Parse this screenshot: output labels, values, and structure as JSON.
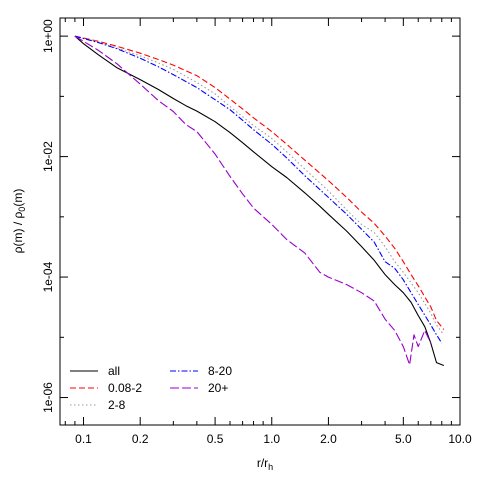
{
  "chart_data": {
    "type": "line",
    "title": "",
    "xlabel": {
      "main": "r/r",
      "sub": "h"
    },
    "ylabel": {
      "pre": "ρ(m) / ρ",
      "sub": "0",
      "post": "(m)"
    },
    "x_scale": "log",
    "y_scale": "log",
    "xlim": [
      0.075,
      10.0
    ],
    "ylim": [
      3.5e-07,
      2.0
    ],
    "x_ticks": [
      0.1,
      0.2,
      0.5,
      1.0,
      2.0,
      5.0,
      10.0
    ],
    "x_tick_labels": [
      "0.1",
      "0.2",
      "0.5",
      "1.0",
      "2.0",
      "5.0",
      "10.0"
    ],
    "y_ticks": [
      1,
      0.01,
      0.0001,
      1e-06
    ],
    "y_tick_labels": [
      "1e+00",
      "1e-02",
      "1e-04",
      "1e-06"
    ],
    "grid": false,
    "legend": {
      "placement": "bottom-left",
      "columns": 2
    },
    "series": [
      {
        "name": "all",
        "color": "#000000",
        "dash": "solid",
        "points": [
          [
            0.09,
            1.0
          ],
          [
            0.1,
            0.75
          ],
          [
            0.12,
            0.49
          ],
          [
            0.15,
            0.3
          ],
          [
            0.2,
            0.19
          ],
          [
            0.25,
            0.13
          ],
          [
            0.3,
            0.092
          ],
          [
            0.35,
            0.07
          ],
          [
            0.4,
            0.057
          ],
          [
            0.5,
            0.038
          ],
          [
            0.6,
            0.025
          ],
          [
            0.7,
            0.017
          ],
          [
            0.8,
            0.012
          ],
          [
            1.0,
            0.0068
          ],
          [
            1.2,
            0.0045
          ],
          [
            1.5,
            0.0025
          ],
          [
            1.8,
            0.0015
          ],
          [
            2.0,
            0.0011
          ],
          [
            2.5,
            0.00058
          ],
          [
            3.0,
            0.00032
          ],
          [
            3.5,
            0.00019
          ],
          [
            4.0,
            0.00011
          ],
          [
            4.5,
            7.5e-05
          ],
          [
            5.0,
            5.5e-05
          ],
          [
            5.5,
            3.8e-05
          ],
          [
            6.0,
            2.3e-05
          ],
          [
            6.5,
            1.5e-05
          ],
          [
            7.0,
            8e-06
          ],
          [
            7.5,
            3.8e-06
          ],
          [
            8.2,
            3.4e-06
          ]
        ]
      },
      {
        "name": "0.08-2",
        "color": "#ff0000",
        "dash": "dashed",
        "points": [
          [
            0.09,
            1.0
          ],
          [
            0.12,
            0.82
          ],
          [
            0.15,
            0.68
          ],
          [
            0.2,
            0.52
          ],
          [
            0.25,
            0.41
          ],
          [
            0.3,
            0.33
          ],
          [
            0.4,
            0.22
          ],
          [
            0.5,
            0.14
          ],
          [
            0.6,
            0.09
          ],
          [
            0.7,
            0.062
          ],
          [
            0.8,
            0.044
          ],
          [
            1.0,
            0.026
          ],
          [
            1.2,
            0.016
          ],
          [
            1.5,
            0.0087
          ],
          [
            2.0,
            0.004
          ],
          [
            2.5,
            0.0021
          ],
          [
            3.0,
            0.0012
          ],
          [
            3.5,
            0.00078
          ],
          [
            4.0,
            0.00048
          ],
          [
            4.5,
            0.0003
          ],
          [
            5.0,
            0.00018
          ],
          [
            5.5,
            0.00011
          ],
          [
            6.0,
            7.2e-05
          ],
          [
            7.0,
            3.2e-05
          ],
          [
            7.5,
            1.9e-05
          ],
          [
            8.2,
            1.35e-05
          ]
        ]
      },
      {
        "name": "2-8",
        "color": "#999999",
        "dash": "dotted",
        "points": [
          [
            0.09,
            1.0
          ],
          [
            0.12,
            0.8
          ],
          [
            0.15,
            0.64
          ],
          [
            0.2,
            0.47
          ],
          [
            0.25,
            0.36
          ],
          [
            0.3,
            0.28
          ],
          [
            0.4,
            0.17
          ],
          [
            0.5,
            0.11
          ],
          [
            0.6,
            0.068
          ],
          [
            0.7,
            0.046
          ],
          [
            0.8,
            0.033
          ],
          [
            1.0,
            0.02
          ],
          [
            1.2,
            0.012
          ],
          [
            1.5,
            0.0062
          ],
          [
            2.0,
            0.0027
          ],
          [
            2.5,
            0.0013
          ],
          [
            3.0,
            0.00075
          ],
          [
            3.5,
            0.00055
          ],
          [
            4.0,
            0.00032
          ],
          [
            4.5,
            0.00018
          ],
          [
            5.0,
            0.00012
          ],
          [
            5.5,
            8e-05
          ],
          [
            6.0,
            5.5e-05
          ],
          [
            7.0,
            2.5e-05
          ],
          [
            7.5,
            1.6e-05
          ],
          [
            8.2,
            1.1e-05
          ]
        ]
      },
      {
        "name": "8-20",
        "color": "#0000ff",
        "dash": "dashdot",
        "points": [
          [
            0.09,
            1.0
          ],
          [
            0.12,
            0.78
          ],
          [
            0.15,
            0.62
          ],
          [
            0.2,
            0.43
          ],
          [
            0.25,
            0.31
          ],
          [
            0.3,
            0.23
          ],
          [
            0.4,
            0.14
          ],
          [
            0.5,
            0.088
          ],
          [
            0.6,
            0.06
          ],
          [
            0.7,
            0.04
          ],
          [
            0.8,
            0.028
          ],
          [
            1.0,
            0.016
          ],
          [
            1.2,
            0.0095
          ],
          [
            1.5,
            0.0048
          ],
          [
            2.0,
            0.0021
          ],
          [
            2.5,
            0.0011
          ],
          [
            3.0,
            0.00062
          ],
          [
            3.5,
            0.00038
          ],
          [
            4.0,
            0.00018
          ],
          [
            4.5,
            0.00014
          ],
          [
            5.0,
            9e-05
          ],
          [
            5.5,
            5.5e-05
          ],
          [
            6.0,
            3.5e-05
          ],
          [
            7.0,
            1.6e-05
          ],
          [
            7.5,
            1.1e-05
          ],
          [
            8.0,
            8e-06
          ]
        ]
      },
      {
        "name": "20+",
        "color": "#9900cc",
        "dash": "longdash",
        "points": [
          [
            0.09,
            1.0
          ],
          [
            0.1,
            0.82
          ],
          [
            0.12,
            0.58
          ],
          [
            0.15,
            0.35
          ],
          [
            0.2,
            0.16
          ],
          [
            0.25,
            0.085
          ],
          [
            0.3,
            0.056
          ],
          [
            0.35,
            0.034
          ],
          [
            0.4,
            0.026
          ],
          [
            0.5,
            0.011
          ],
          [
            0.6,
            0.0047
          ],
          [
            0.7,
            0.0024
          ],
          [
            0.8,
            0.0014
          ],
          [
            1.0,
            0.00075
          ],
          [
            1.2,
            0.00042
          ],
          [
            1.5,
            0.00025
          ],
          [
            1.8,
            0.00012
          ],
          [
            2.0,
            0.0001
          ],
          [
            2.5,
            7.5e-05
          ],
          [
            3.0,
            5.5e-05
          ],
          [
            3.5,
            4e-05
          ],
          [
            4.0,
            2e-05
          ],
          [
            4.5,
            1.3e-05
          ],
          [
            5.0,
            7e-06
          ],
          [
            5.4,
            3.5e-06
          ],
          [
            5.7,
            1.1e-05
          ],
          [
            6.0,
            7e-06
          ],
          [
            6.5,
            1.3e-05
          ],
          [
            7.0,
            8e-06
          ]
        ]
      }
    ]
  }
}
